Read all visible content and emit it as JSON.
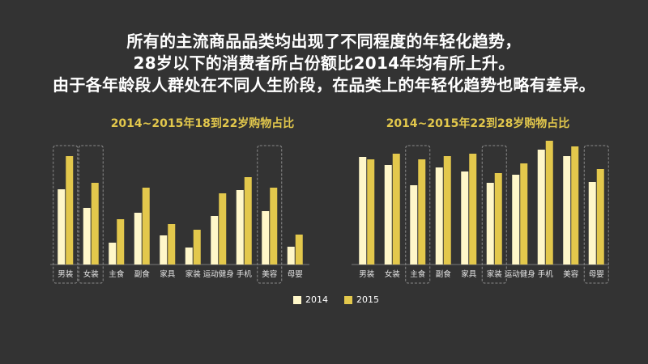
{
  "headline": [
    "所有的主流商品品类均出现了不同程度的年轻化趋势，",
    "28岁以下的消费者所占份额比2014年均有所上升。",
    "由于各年龄段人群处在不同人生阶段，在品类上的年轻化趋势也略有差异。"
  ],
  "colors": {
    "s2014": "#fff7c9",
    "s2015": "#e3c84c",
    "title": "#e3c84c",
    "bg": "#333333",
    "highlight_box": "#8a8a8a"
  },
  "legend": [
    {
      "label": "2014",
      "color": "#fff7c9"
    },
    {
      "label": "2015",
      "color": "#e3c84c"
    }
  ],
  "chart_data": [
    {
      "type": "bar",
      "title": "2014~2015年18到22岁购物占比",
      "categories": [
        "男装",
        "女装",
        "主食",
        "副食",
        "家具",
        "家装",
        "运动健身",
        "手机",
        "美容",
        "母婴"
      ],
      "series": [
        {
          "name": "2014",
          "values": [
            93,
            70,
            27,
            64,
            36,
            21,
            60,
            92,
            66,
            22
          ]
        },
        {
          "name": "2015",
          "values": [
            134,
            101,
            56,
            95,
            50,
            43,
            88,
            108,
            95,
            37
          ]
        }
      ],
      "highlighted": [
        "男装",
        "女装",
        "美容"
      ],
      "grid": false
    },
    {
      "type": "bar",
      "title": "2014~2015年22到28岁购物占比",
      "categories": [
        "男装",
        "女装",
        "主食",
        "副食",
        "家具",
        "家装",
        "运动健身",
        "手机",
        "美容",
        "母婴"
      ],
      "series": [
        {
          "name": "2014",
          "values": [
            133,
            123,
            98,
            120,
            115,
            101,
            111,
            142,
            134,
            102
          ]
        },
        {
          "name": "2015",
          "values": [
            130,
            137,
            130,
            134,
            137,
            113,
            125,
            153,
            146,
            118
          ]
        }
      ],
      "highlighted": [
        "主食",
        "家装",
        "母婴"
      ],
      "grid": false
    }
  ]
}
